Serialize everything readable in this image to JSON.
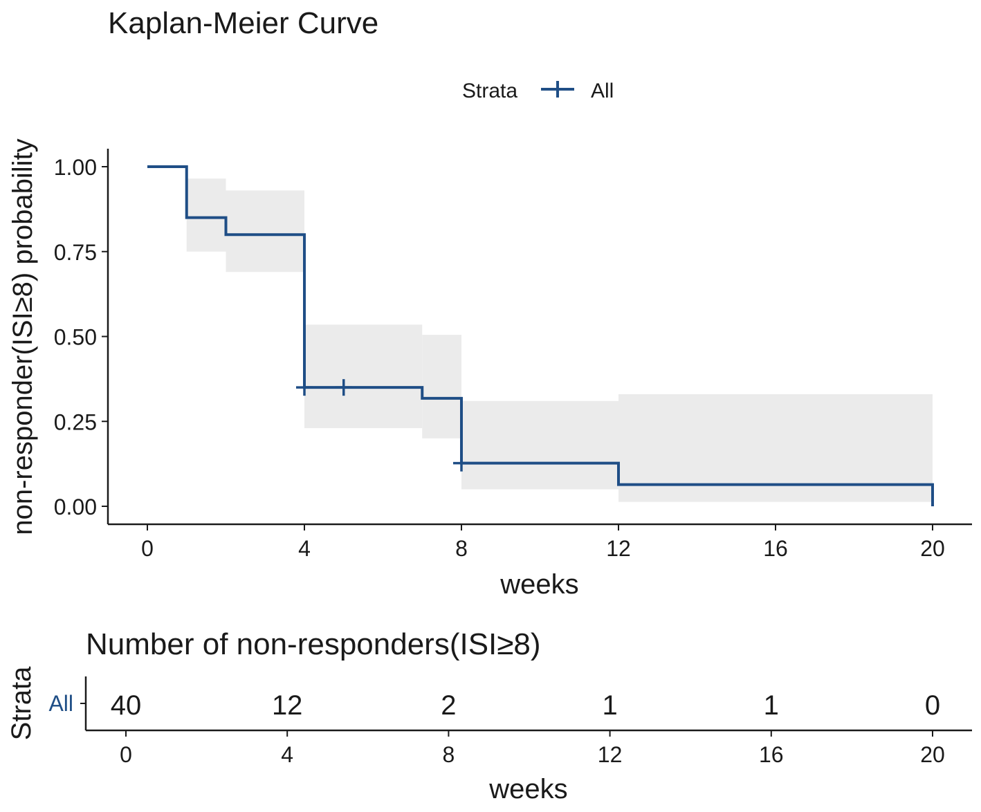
{
  "chart_data": [
    {
      "type": "line",
      "subtype": "kaplan-meier-step",
      "title": "Kaplan-Meier Curve",
      "xlabel": "weeks",
      "ylabel": "non-responder(ISI≥8) probability",
      "xlim": [
        0,
        20
      ],
      "ylim": [
        0,
        1
      ],
      "xticks": [
        0,
        4,
        8,
        12,
        16,
        20
      ],
      "yticks": [
        0.0,
        0.25,
        0.5,
        0.75,
        1.0
      ],
      "ytick_labels": [
        "0.00",
        "0.25",
        "0.50",
        "0.75",
        "1.00"
      ],
      "xtick_labels": [
        "0",
        "4",
        "8",
        "12",
        "16",
        "20"
      ],
      "legend": {
        "title": "Strata",
        "placement": "top-center",
        "entries": [
          {
            "name": "All",
            "color": "#1f4e86"
          }
        ]
      },
      "series": [
        {
          "name": "All",
          "color": "#1f4e86",
          "ci_color": "#ebebeb",
          "steps": [
            {
              "x": 0,
              "y": 1.0,
              "lower": 1.0,
              "upper": 1.0
            },
            {
              "x": 1,
              "y": 0.85,
              "lower": 0.75,
              "upper": 0.965
            },
            {
              "x": 2,
              "y": 0.8,
              "lower": 0.69,
              "upper": 0.93
            },
            {
              "x": 4,
              "y": 0.35,
              "lower": 0.23,
              "upper": 0.535
            },
            {
              "x": 7,
              "y": 0.318,
              "lower": 0.2,
              "upper": 0.505
            },
            {
              "x": 8,
              "y": 0.127,
              "lower": 0.05,
              "upper": 0.31
            },
            {
              "x": 12,
              "y": 0.064,
              "lower": 0.013,
              "upper": 0.33
            },
            {
              "x": 20,
              "y": 0.0,
              "lower": 0.0,
              "upper": 0.0
            }
          ],
          "end_x": 20,
          "censored": [
            {
              "x": 4,
              "y": 0.35
            },
            {
              "x": 5,
              "y": 0.35
            },
            {
              "x": 8,
              "y": 0.127
            }
          ]
        }
      ]
    },
    {
      "type": "table",
      "title": "Number of non-responders(ISI≥8)",
      "xlabel": "weeks",
      "ylabel": "Strata",
      "xlim": [
        0,
        20
      ],
      "xticks": [
        0,
        4,
        8,
        12,
        16,
        20
      ],
      "xtick_labels": [
        "0",
        "4",
        "8",
        "12",
        "16",
        "20"
      ],
      "rows": [
        {
          "label": "All",
          "color": "#1f4e86",
          "values": [
            "40",
            "12",
            "2",
            "1",
            "1",
            "0"
          ]
        }
      ]
    }
  ]
}
